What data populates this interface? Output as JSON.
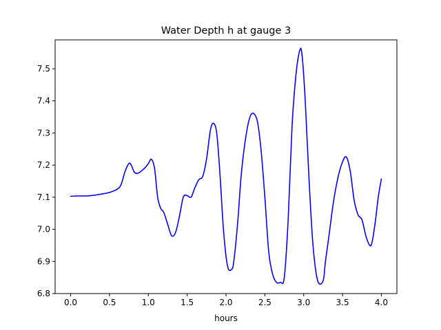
{
  "chart_data": {
    "type": "line",
    "title": "Water Depth h at gauge 3",
    "xlabel": "hours",
    "ylabel": "",
    "xlim": [
      -0.2,
      4.2
    ],
    "ylim": [
      6.8,
      7.59
    ],
    "grid": false,
    "x_ticks": [
      0.0,
      0.5,
      1.0,
      1.5,
      2.0,
      2.5,
      3.0,
      3.5,
      4.0
    ],
    "x_tick_labels": [
      "0.0",
      "0.5",
      "1.0",
      "1.5",
      "2.0",
      "2.5",
      "3.0",
      "3.5",
      "4.0"
    ],
    "y_ticks": [
      6.8,
      6.9,
      7.0,
      7.1,
      7.2,
      7.3,
      7.4,
      7.5
    ],
    "y_tick_labels": [
      "6.8",
      "6.9",
      "7.0",
      "7.1",
      "7.2",
      "7.3",
      "7.4",
      "7.5"
    ],
    "series": [
      {
        "color": "#0000ff",
        "x": [
          0.0,
          0.1,
          0.2,
          0.3,
          0.4,
          0.5,
          0.6,
          0.65,
          0.7,
          0.75,
          0.78,
          0.82,
          0.87,
          0.95,
          1.0,
          1.04,
          1.08,
          1.12,
          1.16,
          1.2,
          1.25,
          1.3,
          1.35,
          1.4,
          1.45,
          1.5,
          1.55,
          1.6,
          1.65,
          1.7,
          1.75,
          1.8,
          1.84,
          1.88,
          1.92,
          1.97,
          2.02,
          2.07,
          2.1,
          2.15,
          2.2,
          2.27,
          2.33,
          2.4,
          2.45,
          2.5,
          2.55,
          2.6,
          2.65,
          2.7,
          2.75,
          2.8,
          2.85,
          2.9,
          2.95,
          2.98,
          3.02,
          3.07,
          3.12,
          3.18,
          3.25,
          3.28,
          3.32,
          3.38,
          3.44,
          3.5,
          3.55,
          3.6,
          3.65,
          3.7,
          3.75,
          3.8,
          3.85,
          3.88,
          3.92,
          3.96,
          4.0
        ],
        "y": [
          7.103,
          7.104,
          7.104,
          7.106,
          7.11,
          7.115,
          7.125,
          7.14,
          7.18,
          7.205,
          7.2,
          7.178,
          7.175,
          7.19,
          7.205,
          7.218,
          7.19,
          7.1,
          7.065,
          7.052,
          7.015,
          6.98,
          6.99,
          7.04,
          7.1,
          7.105,
          7.1,
          7.13,
          7.155,
          7.165,
          7.22,
          7.31,
          7.33,
          7.3,
          7.18,
          6.99,
          6.885,
          6.875,
          6.9,
          7.02,
          7.18,
          7.31,
          7.36,
          7.34,
          7.25,
          7.1,
          6.93,
          6.86,
          6.835,
          6.835,
          6.85,
          7.03,
          7.32,
          7.48,
          7.558,
          7.54,
          7.4,
          7.15,
          6.95,
          6.84,
          6.84,
          6.9,
          6.97,
          7.08,
          7.16,
          7.21,
          7.225,
          7.18,
          7.09,
          7.045,
          7.03,
          6.98,
          6.95,
          6.96,
          7.02,
          7.1,
          7.157
        ]
      }
    ]
  }
}
